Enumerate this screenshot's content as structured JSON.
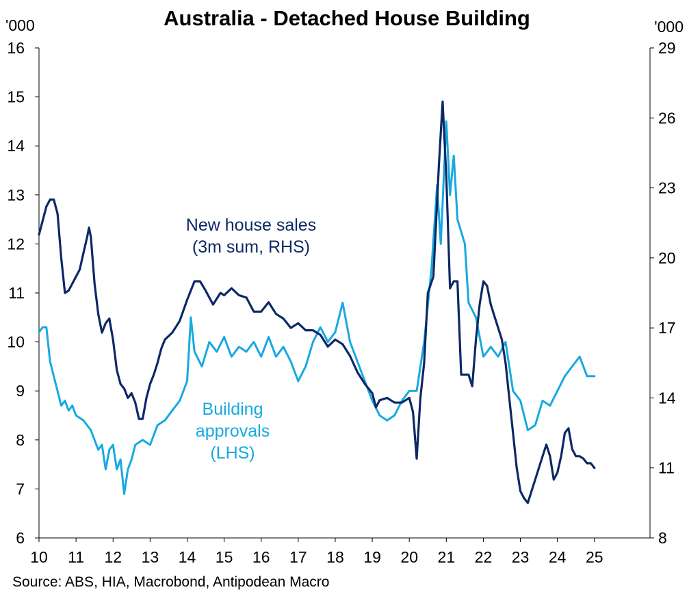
{
  "chart_data": {
    "type": "line",
    "title": "Australia - Detached House Building",
    "y_left_unit": "'000",
    "y_right_unit": "'000",
    "y_left_range": [
      6,
      16
    ],
    "y_right_range": [
      8,
      29
    ],
    "y_left_ticks": [
      "6",
      "7",
      "8",
      "9",
      "10",
      "11",
      "12",
      "13",
      "14",
      "15",
      "16"
    ],
    "y_right_ticks": [
      "8",
      "11",
      "14",
      "17",
      "20",
      "23",
      "26",
      "29"
    ],
    "x_ticks": [
      "10",
      "11",
      "12",
      "13",
      "14",
      "15",
      "16",
      "17",
      "18",
      "19",
      "20",
      "21",
      "22",
      "23",
      "24",
      "25"
    ],
    "x_range": [
      2010,
      2026.5
    ],
    "grid": false,
    "source": "Source: ABS, HIA, Macrobond, Antipodean Macro",
    "series": [
      {
        "name": "New house sales (3m sum, RHS)",
        "label_lines": [
          "New house sales",
          "(3m sum, RHS)"
        ],
        "axis": "right",
        "color": "#0d2866",
        "points": [
          [
            2010.0,
            21.0
          ],
          [
            2010.1,
            21.6
          ],
          [
            2010.2,
            22.2
          ],
          [
            2010.3,
            22.5
          ],
          [
            2010.4,
            22.5
          ],
          [
            2010.5,
            21.9
          ],
          [
            2010.6,
            20.0
          ],
          [
            2010.7,
            18.5
          ],
          [
            2010.8,
            18.6
          ],
          [
            2010.9,
            18.9
          ],
          [
            2011.0,
            19.2
          ],
          [
            2011.1,
            19.5
          ],
          [
            2011.2,
            20.2
          ],
          [
            2011.3,
            20.9
          ],
          [
            2011.35,
            21.3
          ],
          [
            2011.4,
            20.9
          ],
          [
            2011.5,
            18.9
          ],
          [
            2011.6,
            17.6
          ],
          [
            2011.7,
            16.8
          ],
          [
            2011.8,
            17.2
          ],
          [
            2011.9,
            17.4
          ],
          [
            2012.0,
            16.5
          ],
          [
            2012.1,
            15.2
          ],
          [
            2012.2,
            14.6
          ],
          [
            2012.3,
            14.4
          ],
          [
            2012.4,
            14.0
          ],
          [
            2012.5,
            14.2
          ],
          [
            2012.6,
            13.8
          ],
          [
            2012.7,
            13.1
          ],
          [
            2012.8,
            13.1
          ],
          [
            2012.9,
            14.0
          ],
          [
            2013.0,
            14.6
          ],
          [
            2013.1,
            15.0
          ],
          [
            2013.2,
            15.5
          ],
          [
            2013.3,
            16.1
          ],
          [
            2013.4,
            16.5
          ],
          [
            2013.6,
            16.8
          ],
          [
            2013.8,
            17.3
          ],
          [
            2014.0,
            18.2
          ],
          [
            2014.2,
            19.0
          ],
          [
            2014.35,
            19.0
          ],
          [
            2014.5,
            18.6
          ],
          [
            2014.7,
            18.0
          ],
          [
            2014.9,
            18.5
          ],
          [
            2015.0,
            18.4
          ],
          [
            2015.2,
            18.7
          ],
          [
            2015.4,
            18.4
          ],
          [
            2015.6,
            18.3
          ],
          [
            2015.8,
            17.7
          ],
          [
            2016.0,
            17.7
          ],
          [
            2016.2,
            18.1
          ],
          [
            2016.4,
            17.6
          ],
          [
            2016.6,
            17.4
          ],
          [
            2016.8,
            17.0
          ],
          [
            2017.0,
            17.2
          ],
          [
            2017.2,
            16.9
          ],
          [
            2017.4,
            16.9
          ],
          [
            2017.6,
            16.7
          ],
          [
            2017.8,
            16.2
          ],
          [
            2018.0,
            16.5
          ],
          [
            2018.2,
            16.3
          ],
          [
            2018.4,
            15.8
          ],
          [
            2018.6,
            15.1
          ],
          [
            2018.8,
            14.6
          ],
          [
            2019.0,
            14.2
          ],
          [
            2019.1,
            13.6
          ],
          [
            2019.2,
            13.9
          ],
          [
            2019.4,
            14.0
          ],
          [
            2019.6,
            13.8
          ],
          [
            2019.8,
            13.8
          ],
          [
            2020.0,
            14.0
          ],
          [
            2020.1,
            13.4
          ],
          [
            2020.2,
            11.4
          ],
          [
            2020.3,
            14.0
          ],
          [
            2020.4,
            15.5
          ],
          [
            2020.5,
            18.5
          ],
          [
            2020.65,
            19.2
          ],
          [
            2020.8,
            24.0
          ],
          [
            2020.9,
            26.7
          ],
          [
            2021.0,
            23.5
          ],
          [
            2021.1,
            18.7
          ],
          [
            2021.2,
            19.0
          ],
          [
            2021.3,
            19.0
          ],
          [
            2021.4,
            15.0
          ],
          [
            2021.5,
            15.0
          ],
          [
            2021.6,
            15.0
          ],
          [
            2021.7,
            14.5
          ],
          [
            2021.8,
            16.5
          ],
          [
            2021.9,
            18.0
          ],
          [
            2022.0,
            19.0
          ],
          [
            2022.1,
            18.8
          ],
          [
            2022.2,
            18.0
          ],
          [
            2022.3,
            17.5
          ],
          [
            2022.4,
            17.0
          ],
          [
            2022.5,
            16.5
          ],
          [
            2022.6,
            15.5
          ],
          [
            2022.7,
            14.0
          ],
          [
            2022.8,
            12.5
          ],
          [
            2022.9,
            11.0
          ],
          [
            2023.0,
            10.0
          ],
          [
            2023.1,
            9.7
          ],
          [
            2023.2,
            9.5
          ],
          [
            2023.3,
            10.0
          ],
          [
            2023.4,
            10.5
          ],
          [
            2023.5,
            11.0
          ],
          [
            2023.6,
            11.5
          ],
          [
            2023.7,
            12.0
          ],
          [
            2023.8,
            11.5
          ],
          [
            2023.9,
            10.5
          ],
          [
            2024.0,
            10.8
          ],
          [
            2024.1,
            11.5
          ],
          [
            2024.2,
            12.5
          ],
          [
            2024.3,
            12.7
          ],
          [
            2024.4,
            11.8
          ],
          [
            2024.5,
            11.5
          ],
          [
            2024.6,
            11.5
          ],
          [
            2024.7,
            11.4
          ],
          [
            2024.8,
            11.2
          ],
          [
            2024.9,
            11.2
          ],
          [
            2025.0,
            11.0
          ]
        ]
      },
      {
        "name": "Building approvals (LHS)",
        "label_lines": [
          "Building",
          "approvals",
          "(LHS)"
        ],
        "axis": "left",
        "color": "#17a9e1",
        "points": [
          [
            2010.0,
            10.2
          ],
          [
            2010.1,
            10.3
          ],
          [
            2010.2,
            10.3
          ],
          [
            2010.3,
            9.6
          ],
          [
            2010.4,
            9.3
          ],
          [
            2010.5,
            9.0
          ],
          [
            2010.6,
            8.7
          ],
          [
            2010.7,
            8.8
          ],
          [
            2010.8,
            8.6
          ],
          [
            2010.9,
            8.7
          ],
          [
            2011.0,
            8.5
          ],
          [
            2011.2,
            8.4
          ],
          [
            2011.4,
            8.2
          ],
          [
            2011.6,
            7.8
          ],
          [
            2011.7,
            7.9
          ],
          [
            2011.8,
            7.4
          ],
          [
            2011.9,
            7.8
          ],
          [
            2012.0,
            7.9
          ],
          [
            2012.1,
            7.4
          ],
          [
            2012.2,
            7.6
          ],
          [
            2012.3,
            6.9
          ],
          [
            2012.4,
            7.4
          ],
          [
            2012.5,
            7.6
          ],
          [
            2012.6,
            7.9
          ],
          [
            2012.8,
            8.0
          ],
          [
            2013.0,
            7.9
          ],
          [
            2013.2,
            8.3
          ],
          [
            2013.4,
            8.4
          ],
          [
            2013.6,
            8.6
          ],
          [
            2013.8,
            8.8
          ],
          [
            2014.0,
            9.2
          ],
          [
            2014.1,
            10.5
          ],
          [
            2014.2,
            9.8
          ],
          [
            2014.4,
            9.5
          ],
          [
            2014.6,
            10.0
          ],
          [
            2014.8,
            9.8
          ],
          [
            2015.0,
            10.1
          ],
          [
            2015.2,
            9.7
          ],
          [
            2015.4,
            9.9
          ],
          [
            2015.6,
            9.8
          ],
          [
            2015.8,
            10.0
          ],
          [
            2016.0,
            9.7
          ],
          [
            2016.2,
            10.1
          ],
          [
            2016.4,
            9.7
          ],
          [
            2016.6,
            9.9
          ],
          [
            2016.8,
            9.6
          ],
          [
            2017.0,
            9.2
          ],
          [
            2017.2,
            9.5
          ],
          [
            2017.4,
            10.0
          ],
          [
            2017.6,
            10.3
          ],
          [
            2017.8,
            10.0
          ],
          [
            2018.0,
            10.2
          ],
          [
            2018.2,
            10.8
          ],
          [
            2018.4,
            10.0
          ],
          [
            2018.6,
            9.6
          ],
          [
            2018.8,
            9.2
          ],
          [
            2019.0,
            8.8
          ],
          [
            2019.2,
            8.5
          ],
          [
            2019.4,
            8.4
          ],
          [
            2019.6,
            8.5
          ],
          [
            2019.8,
            8.8
          ],
          [
            2020.0,
            9.0
          ],
          [
            2020.2,
            9.0
          ],
          [
            2020.4,
            10.0
          ],
          [
            2020.6,
            11.5
          ],
          [
            2020.75,
            13.2
          ],
          [
            2020.85,
            12.0
          ],
          [
            2021.0,
            14.5
          ],
          [
            2021.1,
            13.0
          ],
          [
            2021.2,
            13.8
          ],
          [
            2021.3,
            12.5
          ],
          [
            2021.5,
            12.0
          ],
          [
            2021.6,
            10.8
          ],
          [
            2021.8,
            10.5
          ],
          [
            2022.0,
            9.7
          ],
          [
            2022.2,
            9.9
          ],
          [
            2022.4,
            9.7
          ],
          [
            2022.6,
            10.0
          ],
          [
            2022.8,
            9.0
          ],
          [
            2023.0,
            8.8
          ],
          [
            2023.2,
            8.2
          ],
          [
            2023.4,
            8.3
          ],
          [
            2023.6,
            8.8
          ],
          [
            2023.8,
            8.7
          ],
          [
            2024.0,
            9.0
          ],
          [
            2024.2,
            9.3
          ],
          [
            2024.4,
            9.5
          ],
          [
            2024.6,
            9.7
          ],
          [
            2024.8,
            9.3
          ],
          [
            2025.0,
            9.3
          ]
        ]
      }
    ]
  }
}
